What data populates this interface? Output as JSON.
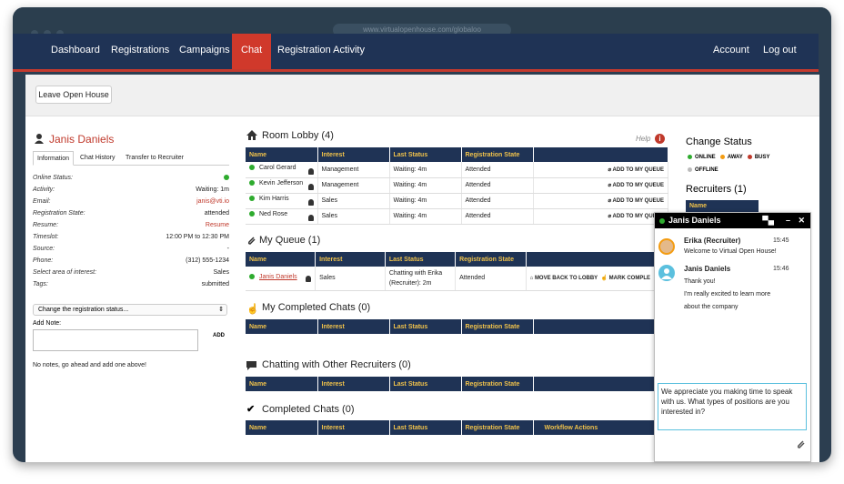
{
  "browser": {
    "url": "www.virtualopenhouse.com/globaloo"
  },
  "nav": {
    "items": [
      "Dashboard",
      "Registrations",
      "Campaigns",
      "Chat",
      "Registration Activity"
    ],
    "active": "Chat",
    "right": [
      "Account",
      "Log out"
    ]
  },
  "toolbar": {
    "leave_label": "Leave Open House"
  },
  "candidate": {
    "name": "Janis Daniels",
    "tabs": [
      "Information",
      "Chat History",
      "Transfer to Recruiter"
    ],
    "fields": [
      {
        "k": "Online Status:",
        "v": ""
      },
      {
        "k": "Activity:",
        "v": "Waiting: 1m"
      },
      {
        "k": "Email:",
        "v": "janis@vti.io"
      },
      {
        "k": "Registration State:",
        "v": "attended"
      },
      {
        "k": "Resume:",
        "v": "Resume"
      },
      {
        "k": "Timeslot:",
        "v": "12:00 PM to 12:30 PM"
      },
      {
        "k": "Source:",
        "v": "-"
      },
      {
        "k": "Phone:",
        "v": "(312) 555-1234"
      },
      {
        "k": "Select area of interest:",
        "v": "Sales"
      },
      {
        "k": "Tags:",
        "v": "submitted"
      }
    ],
    "state_select": "Change the registration status...",
    "add_note_label": "Add Note:",
    "add_button": "ADD",
    "no_notes": "No notes, go ahead and add one above!"
  },
  "help_label": "Help",
  "columns": [
    "Name",
    "Interest",
    "Last Status",
    "Registration State"
  ],
  "room_lobby": {
    "title": "Room Lobby (4)",
    "rows": [
      {
        "name": "Carol Gerard",
        "interest": "Management",
        "status": "Waiting: 4m",
        "state": "Attended",
        "action": "ADD TO MY QUEUE"
      },
      {
        "name": "Kevin Jefferson",
        "interest": "Management",
        "status": "Waiting: 4m",
        "state": "Attended",
        "action": "ADD TO MY QUEUE"
      },
      {
        "name": "Kim Harris",
        "interest": "Sales",
        "status": "Waiting: 4m",
        "state": "Attended",
        "action": "ADD TO MY QUEUE"
      },
      {
        "name": "Ned Rose",
        "interest": "Sales",
        "status": "Waiting: 4m",
        "state": "Attended",
        "action": "ADD TO MY QUEUE"
      }
    ]
  },
  "my_queue": {
    "title": "My Queue (1)",
    "row": {
      "name": "Janis Daniels",
      "interest": "Sales",
      "status_1": "Chatting with Erika",
      "status_2": "(Recruiter): 2m",
      "state": "Attended",
      "action_1": "MOVE BACK TO LOBBY",
      "action_2": "MARK COMPLE"
    }
  },
  "completed_chats_mine": {
    "title": "My Completed Chats (0)"
  },
  "chatting_other": {
    "title": "Chatting with Other Recruiters (0)"
  },
  "completed_chats": {
    "title": "Completed Chats (0)",
    "extra_col": "Workflow Actions"
  },
  "status": {
    "title": "Change Status",
    "options": [
      {
        "label": "ONLINE",
        "color": "#2eab2e"
      },
      {
        "label": "AWAY",
        "color": "#f39c12"
      },
      {
        "label": "BUSY",
        "color": "#c0392b"
      },
      {
        "label": "OFFLINE",
        "color": "#bbbbbb"
      }
    ]
  },
  "recruiters": {
    "title": "Recruiters (1)",
    "col": "Name"
  },
  "chat": {
    "title": "Janis Daniels",
    "messages": [
      {
        "name": "Erika (Recruiter)",
        "time": "15:45",
        "lines": [
          "Welcome to Virtual Open House!"
        ]
      },
      {
        "name": "Janis Daniels",
        "time": "15:46",
        "lines": [
          "Thank you!",
          "I'm really excited to learn more",
          "about the company"
        ]
      }
    ],
    "input_value": "We appreciate you making time to speak with us. What types of positions are you interested in?"
  }
}
